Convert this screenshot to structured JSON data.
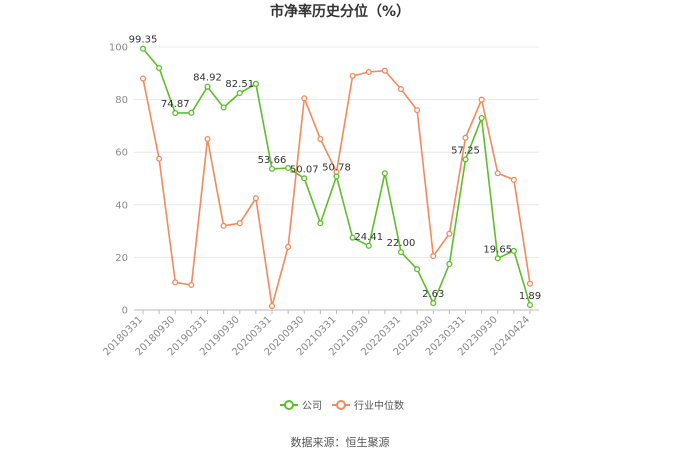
{
  "page": {
    "source_label": "数据来源：恒生聚源"
  },
  "chart_data": {
    "type": "line",
    "title": "市净率历史分位（%）",
    "xlabel": "",
    "ylabel": "",
    "ylim": [
      0,
      100
    ],
    "yticks": [
      0,
      20,
      40,
      60,
      80,
      100
    ],
    "grid": true,
    "legend_position": "bottom",
    "x": [
      "20180331",
      "20180630",
      "20180930",
      "20181231",
      "20190331",
      "20190630",
      "20190930",
      "20191231",
      "20200331",
      "20200630",
      "20200930",
      "20201231",
      "20210331",
      "20210630",
      "20210930",
      "20211231",
      "20220331",
      "20220630",
      "20220930",
      "20221231",
      "20230331",
      "20230630",
      "20230930",
      "20231231",
      "20240424"
    ],
    "x_tick_labels": [
      "20180331",
      "20180930",
      "20190331",
      "20190930",
      "20200331",
      "20200930",
      "20210331",
      "20210930",
      "20220331",
      "20220930",
      "20230331",
      "20230930",
      "20240424"
    ],
    "series": [
      {
        "name": "公司",
        "color": "#5cbf2a",
        "values": [
          99.35,
          92,
          74.87,
          75,
          84.92,
          77,
          82.51,
          86,
          53.66,
          54,
          50.07,
          33,
          50.78,
          27.5,
          24.41,
          52,
          22.0,
          15.5,
          2.63,
          17.5,
          57.25,
          73,
          19.65,
          22.5,
          1.89
        ],
        "labels": {
          "0": "99.35",
          "2": "74.87",
          "4": "84.92",
          "6": "82.51",
          "8": "53.66",
          "10": "50.07",
          "12": "50.78",
          "14": "24.41",
          "16": "22.00",
          "18": "2.63",
          "20": "57.25",
          "22": "19.65",
          "24": "1.89"
        }
      },
      {
        "name": "行业中位数",
        "color": "#f5895c",
        "values": [
          88,
          57.5,
          10.5,
          9.5,
          65,
          32,
          33,
          42.5,
          1.5,
          24,
          80.5,
          65,
          52.5,
          89,
          90.5,
          91,
          84,
          76,
          20.5,
          29,
          65.5,
          80,
          52,
          49.5,
          10
        ]
      }
    ]
  }
}
